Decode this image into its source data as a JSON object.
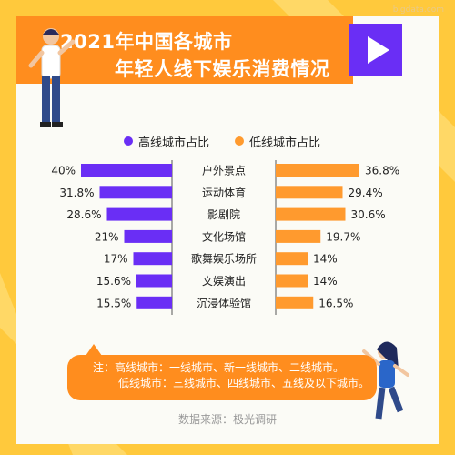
{
  "header": {
    "title_line1": "2021年中国各城市",
    "title_line2": "年轻人线下娱乐消费情况"
  },
  "icons": {
    "play": "play-icon",
    "legend_dot": "circle-icon"
  },
  "colors": {
    "high_tier": "#6a2ef5",
    "low_tier": "#ff9a2e",
    "banner": "#ff8d1e",
    "background": "#ffc93c"
  },
  "chart_data": {
    "type": "bar",
    "orientation": "horizontal-butterfly",
    "categories": [
      "户外景点",
      "运动体育",
      "影剧院",
      "文化场馆",
      "歌舞娱乐场所",
      "文娱演出",
      "沉浸体验馆"
    ],
    "series": [
      {
        "name": "高线城市占比",
        "values": [
          40,
          31.8,
          28.6,
          21,
          17,
          15.6,
          15.5
        ],
        "labels": [
          "40%",
          "31.8%",
          "28.6%",
          "21%",
          "17%",
          "15.6%",
          "15.5%"
        ]
      },
      {
        "name": "低线城市占比",
        "values": [
          36.8,
          29.4,
          30.6,
          19.7,
          14,
          14,
          16.5
        ],
        "labels": [
          "36.8%",
          "29.4%",
          "30.6%",
          "19.7%",
          "14%",
          "14%",
          "16.5%"
        ]
      }
    ],
    "legend_position": "top-center",
    "grid": false
  },
  "note": {
    "line1": "注：高线城市：一线城市、新一线城市、二线城市。",
    "line2": "低线城市：三线城市、四线城市、五线及以下城市。"
  },
  "source": "数据来源：极光调研"
}
